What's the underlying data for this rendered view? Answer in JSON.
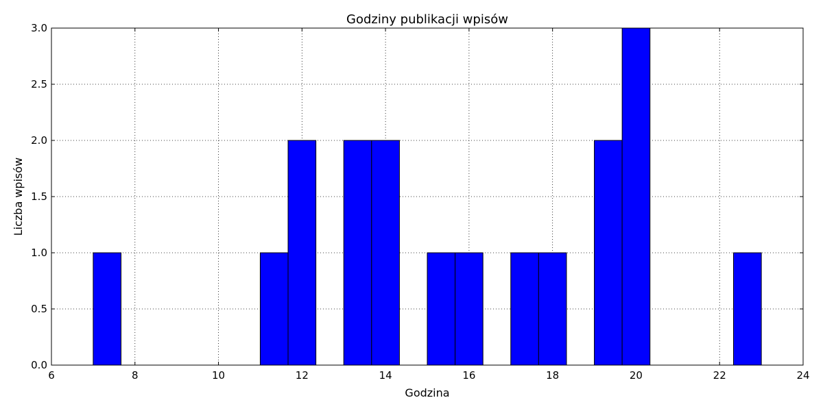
{
  "chart_data": {
    "type": "histogram",
    "title": "Godziny publikacji wpisów",
    "xlabel": "Godzina",
    "ylabel": "Liczba wpisów",
    "bins": [
      7,
      7.6667,
      8.3333,
      9,
      9.6667,
      10.3333,
      11,
      11.6667,
      12.3333,
      13,
      13.6667,
      14.3333,
      15,
      15.6667,
      16.3333,
      17,
      17.6667,
      18.3333,
      19,
      19.6667,
      20.3333,
      21,
      21.6667,
      22.3333,
      23
    ],
    "values": [
      1,
      0,
      0,
      0,
      0,
      0,
      1,
      2,
      0,
      2,
      2,
      0,
      1,
      1,
      0,
      1,
      1,
      0,
      2,
      3,
      0,
      0,
      0,
      1
    ],
    "color": "#0000ff",
    "xlim": [
      6,
      24
    ],
    "xticks": [
      6,
      8,
      10,
      12,
      14,
      16,
      18,
      20,
      22,
      24
    ],
    "ylim": [
      0,
      3
    ],
    "yticks": [
      {
        "value": 0,
        "label": "0.0"
      },
      {
        "value": 0.5,
        "label": "0.5"
      },
      {
        "value": 1,
        "label": "1.0"
      },
      {
        "value": 1.5,
        "label": "1.5"
      },
      {
        "value": 2,
        "label": "2.0"
      },
      {
        "value": 2.5,
        "label": "2.5"
      },
      {
        "value": 3,
        "label": "3.0"
      }
    ],
    "grid": true
  }
}
